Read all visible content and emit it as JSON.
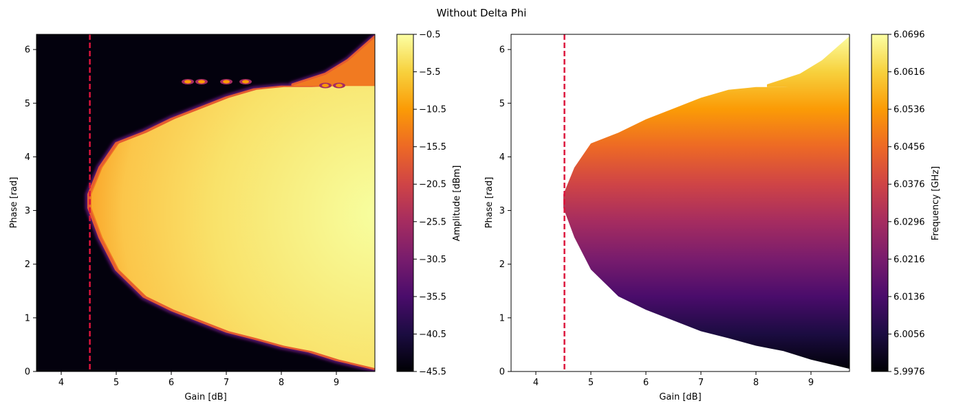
{
  "figure": {
    "title": "Without Delta Phi"
  },
  "colors": {
    "marker_line": "#dc143c",
    "inferno_stops": [
      "#000004",
      "#1b0c41",
      "#4a0c6b",
      "#781c6d",
      "#a52c60",
      "#cf4446",
      "#ed6925",
      "#fb9b06",
      "#f7d13d",
      "#fcffa4"
    ]
  },
  "chart_data": [
    {
      "type": "heatmap",
      "title": "",
      "xlabel": "Gain [dB]",
      "ylabel": "Phase [rad]",
      "xlim": [
        3.55,
        9.7
      ],
      "ylim": [
        0,
        6.283
      ],
      "xticks": [
        4,
        5,
        6,
        7,
        8,
        9
      ],
      "yticks": [
        0,
        1,
        2,
        3,
        4,
        5,
        6
      ],
      "vline": {
        "x": 4.52,
        "style": "dashed"
      },
      "background": "dark",
      "colorbar": {
        "label": "Amplitude [dBm]",
        "min": -45.5,
        "max": -0.5,
        "ticks": [
          "−0.5",
          "−5.5",
          "−10.5",
          "−15.5",
          "−20.5",
          "−25.5",
          "−30.5",
          "−35.5",
          "−40.5",
          "−45.5"
        ],
        "tick_values": [
          -0.5,
          -5.5,
          -10.5,
          -15.5,
          -20.5,
          -25.5,
          -30.5,
          -35.5,
          -40.5,
          -45.5
        ]
      },
      "region": {
        "description": "bright lock region bounded by phase edges vs gain",
        "boundary": [
          {
            "gain": 4.5,
            "phase_low": 3.05,
            "phase_high": 3.3
          },
          {
            "gain": 4.7,
            "phase_low": 2.5,
            "phase_high": 3.8
          },
          {
            "gain": 5.0,
            "phase_low": 1.9,
            "phase_high": 4.25
          },
          {
            "gain": 5.5,
            "phase_low": 1.4,
            "phase_high": 4.45
          },
          {
            "gain": 6.0,
            "phase_low": 1.15,
            "phase_high": 4.7
          },
          {
            "gain": 6.5,
            "phase_low": 0.95,
            "phase_high": 4.9
          },
          {
            "gain": 7.0,
            "phase_low": 0.75,
            "phase_high": 5.1
          },
          {
            "gain": 7.5,
            "phase_low": 0.62,
            "phase_high": 5.25
          },
          {
            "gain": 8.0,
            "phase_low": 0.48,
            "phase_high": 5.3
          },
          {
            "gain": 8.5,
            "phase_low": 0.38,
            "phase_high": 5.3
          },
          {
            "gain": 9.0,
            "phase_low": 0.22,
            "phase_high": 5.32
          },
          {
            "gain": 9.5,
            "phase_low": 0.1,
            "phase_high": 5.32
          },
          {
            "gain": 9.7,
            "phase_low": 0.05,
            "phase_high": 5.32
          }
        ],
        "upper_band": [
          {
            "gain": 8.2,
            "phase": 5.35
          },
          {
            "gain": 8.8,
            "phase": 5.55
          },
          {
            "gain": 9.2,
            "phase": 5.8
          },
          {
            "gain": 9.7,
            "phase": 6.25
          }
        ],
        "spots": [
          {
            "gain": 6.3,
            "phase": 5.4
          },
          {
            "gain": 6.55,
            "phase": 5.4
          },
          {
            "gain": 7.0,
            "phase": 5.4
          },
          {
            "gain": 7.35,
            "phase": 5.4
          },
          {
            "gain": 8.8,
            "phase": 5.33
          },
          {
            "gain": 9.05,
            "phase": 5.33
          }
        ],
        "value_inside_min": -10.5,
        "value_inside_max": -1.5
      }
    },
    {
      "type": "heatmap",
      "title": "",
      "xlabel": "Gain [dB]",
      "ylabel": "Phase [rad]",
      "xlim": [
        3.55,
        9.7
      ],
      "ylim": [
        0,
        6.283
      ],
      "xticks": [
        4,
        5,
        6,
        7,
        8,
        9
      ],
      "yticks": [
        0,
        1,
        2,
        3,
        4,
        5,
        6
      ],
      "vline": {
        "x": 4.52,
        "style": "dashed"
      },
      "background": "white",
      "colorbar": {
        "label": "Frequency [GHz]",
        "min": 5.9976,
        "max": 6.0696,
        "ticks": [
          "6.0696",
          "6.0616",
          "6.0536",
          "6.0456",
          "6.0376",
          "6.0296",
          "6.0216",
          "6.0136",
          "6.0056",
          "5.9976"
        ],
        "tick_values": [
          6.0696,
          6.0616,
          6.0536,
          6.0456,
          6.0376,
          6.0296,
          6.0216,
          6.0136,
          6.0056,
          5.9976
        ]
      },
      "gradient": {
        "description": "frequency increases with phase inside the lock region",
        "phase_at_min": 0.0,
        "phase_at_max": 6.283
      }
    }
  ]
}
